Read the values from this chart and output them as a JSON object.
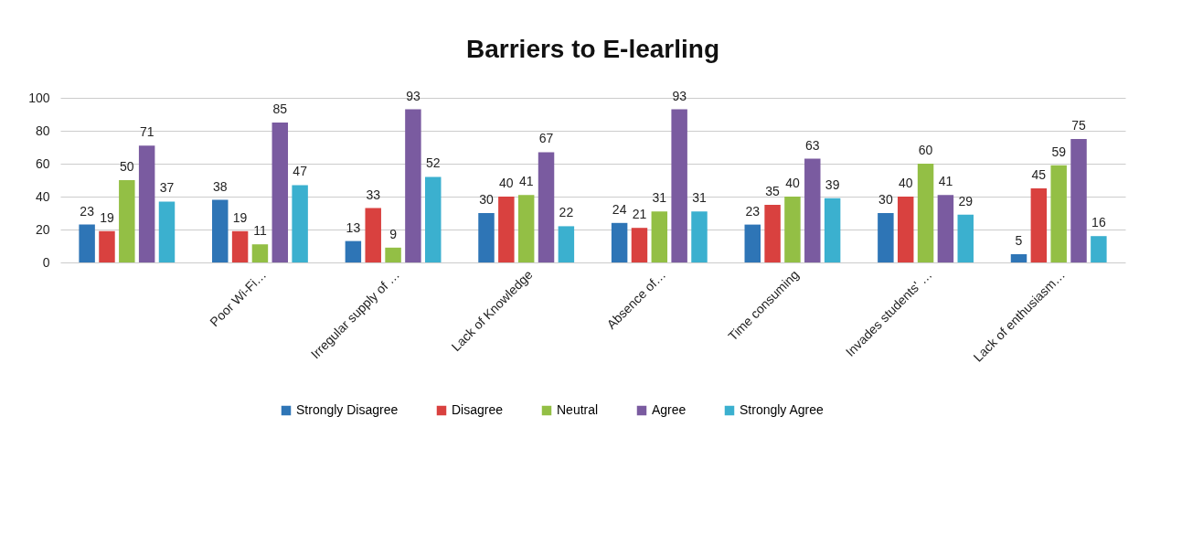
{
  "chart_data": {
    "type": "bar",
    "title": "Barriers to E-learling",
    "categories": [
      null,
      "Poor Wi-Fi…",
      "Irregular supply of …",
      "Lack of Knowledge",
      "Absence of…",
      "Time consuming",
      "Invades students' …",
      "Lack of enthusiasm…"
    ],
    "series": [
      {
        "name": "Strongly Disagree",
        "color": "#2e75b6",
        "values": [
          23,
          38,
          13,
          30,
          24,
          23,
          30,
          5
        ]
      },
      {
        "name": "Disagree",
        "color": "#d9413f",
        "values": [
          19,
          19,
          33,
          40,
          21,
          35,
          40,
          45
        ]
      },
      {
        "name": "Neutral",
        "color": "#93bf45",
        "values": [
          50,
          11,
          9,
          41,
          31,
          40,
          60,
          59
        ]
      },
      {
        "name": "Agree",
        "color": "#7a5ba0",
        "values": [
          71,
          85,
          93,
          67,
          93,
          63,
          41,
          75
        ]
      },
      {
        "name": "Strongly Agree",
        "color": "#3bb0cf",
        "values": [
          37,
          47,
          52,
          22,
          31,
          39,
          29,
          16
        ]
      }
    ],
    "ylim": [
      0,
      100
    ],
    "yticks": [
      0,
      20,
      40,
      60,
      80,
      100
    ],
    "grid": "y",
    "legend": "bottom",
    "data_labels": true
  }
}
